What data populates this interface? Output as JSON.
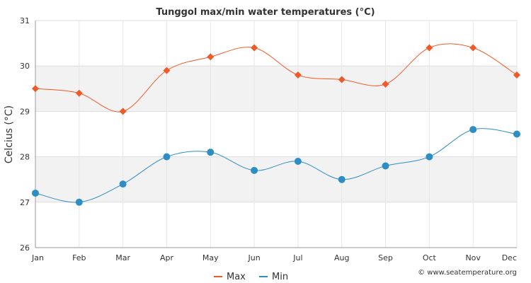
{
  "chart_data": {
    "type": "line",
    "title": "Tunggol max/min water temperatures (°C)",
    "xlabel": "",
    "ylabel": "Celcius (°C)",
    "ylim": [
      26,
      31
    ],
    "yticks": [
      26,
      27,
      28,
      29,
      30,
      31
    ],
    "categories": [
      "Jan",
      "Feb",
      "Mar",
      "Apr",
      "May",
      "Jun",
      "Jul",
      "Aug",
      "Sep",
      "Oct",
      "Nov",
      "Dec"
    ],
    "series": [
      {
        "name": "Max",
        "color": "#f05a28",
        "marker": "diamond",
        "values": [
          29.5,
          29.4,
          29.0,
          29.9,
          30.2,
          30.4,
          29.8,
          29.7,
          29.6,
          30.4,
          30.4,
          29.8
        ]
      },
      {
        "name": "Min",
        "color": "#2e8ec4",
        "marker": "circle",
        "values": [
          27.2,
          27.0,
          27.4,
          28.0,
          28.1,
          27.7,
          27.9,
          27.5,
          27.8,
          28.0,
          28.6,
          28.5
        ]
      }
    ],
    "grid": true,
    "legend": "bottom-center",
    "credit": "© www.seatemperature.org"
  }
}
